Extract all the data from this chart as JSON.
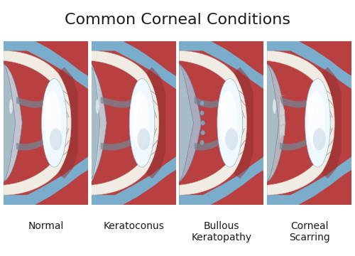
{
  "title": "Common Corneal Conditions",
  "title_fontsize": 16,
  "labels": [
    "Normal",
    "Keratoconus",
    "Bullous\nKeratopathy",
    "Corneal\nScarring"
  ],
  "label_fontsize": 10,
  "bg_color": "#ffffff",
  "colors": {
    "sclera_red": "#b84040",
    "sclera_white": "#f0ece4",
    "sclera_white2": "#e8e4dc",
    "conjunctiva_blue": "#7aaccc",
    "conjunctiva_dark": "#5a8aaa",
    "cornea_normal": "#c8dce8",
    "cornea_front": "#d8eaf4",
    "iris_gray": "#8090a0",
    "lens_white": "#deeef8",
    "lens_bright": "#f0f8ff",
    "lens_highlight": "#ffffff",
    "pupil_dark": "#607080",
    "choroid": "#7a3030",
    "ciliary": "#604040",
    "panel_border": "#c0c0c0"
  }
}
